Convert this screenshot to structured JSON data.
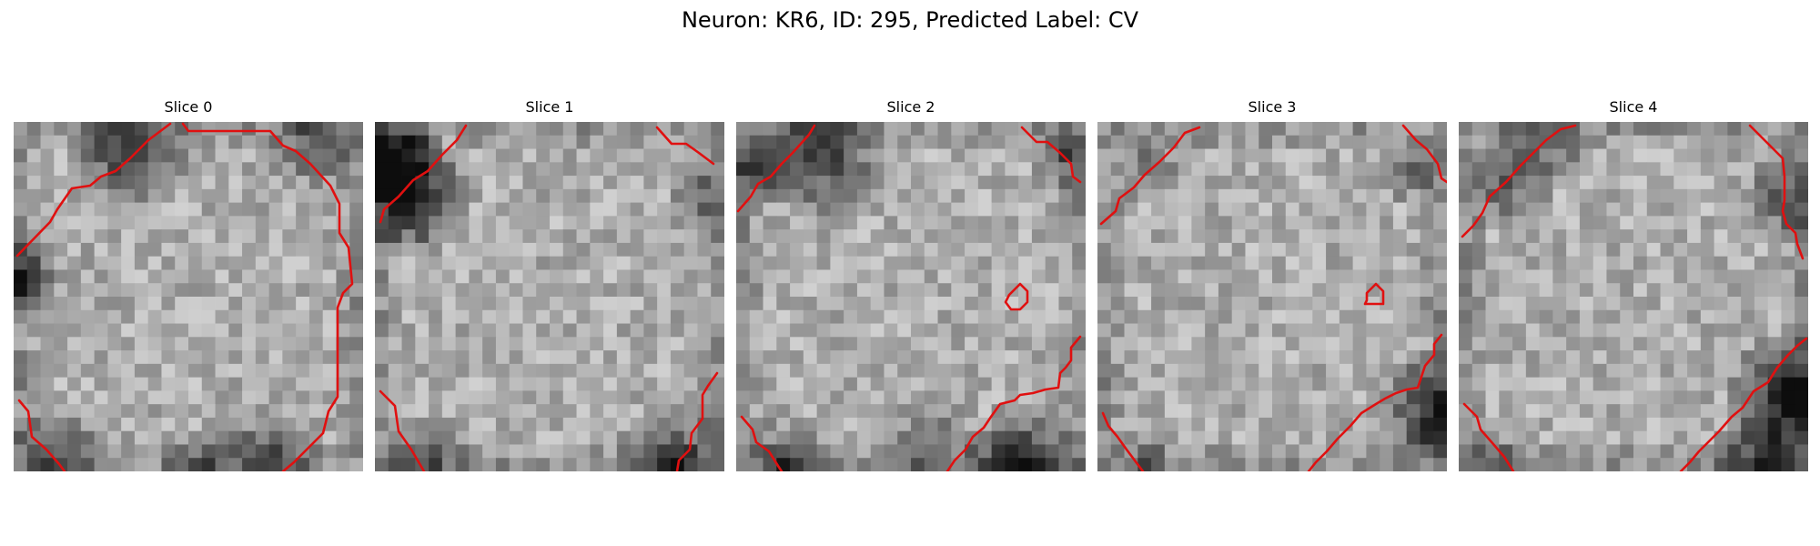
{
  "figure": {
    "title": "Neuron: KR6, ID: 295, Predicted Label: CV",
    "contour_color": "#e01010",
    "colormap": "gray"
  },
  "slices": [
    {
      "title": "Slice 0"
    },
    {
      "title": "Slice 1"
    },
    {
      "title": "Slice 2"
    },
    {
      "title": "Slice 3"
    },
    {
      "title": "Slice 4"
    }
  ]
}
